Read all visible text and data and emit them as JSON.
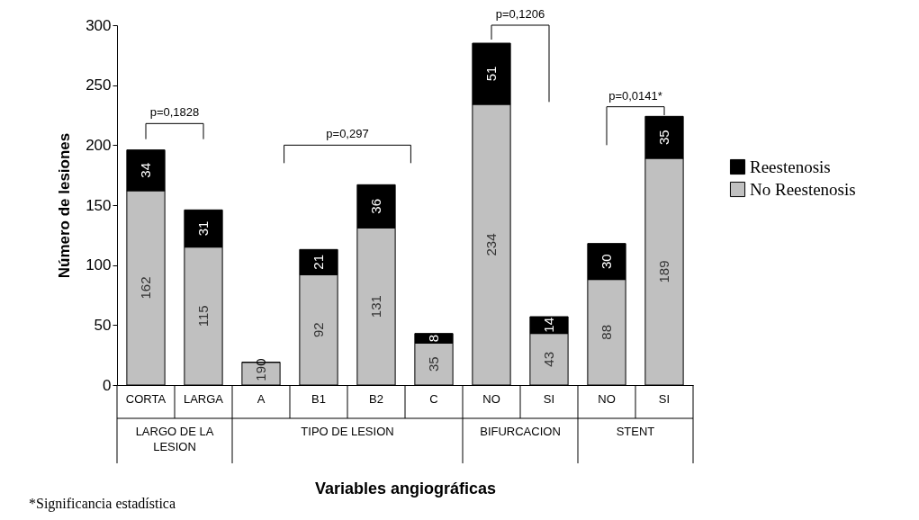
{
  "chart_data": {
    "type": "bar",
    "stacked": true,
    "data_labels": true,
    "legend": "right",
    "xlabel": "Variables angiográficas",
    "ylabel": "Número de lesiones",
    "categories": [
      "CORTA",
      "LARGA",
      "A",
      "B1",
      "B2",
      "C",
      "NO",
      "SI",
      "NO",
      "SI"
    ],
    "series": [
      {
        "name": "No Reestenosis",
        "color": "#c0c0c0",
        "values": [
          162,
          115,
          19,
          92,
          131,
          35,
          234,
          43,
          88,
          189
        ]
      },
      {
        "name": "Reestenosis",
        "color": "#000000",
        "values": [
          34,
          31,
          0,
          21,
          36,
          8,
          51,
          14,
          30,
          35
        ]
      }
    ],
    "ylim": [
      0,
      300
    ],
    "yticks": [
      0,
      50,
      100,
      150,
      200,
      250,
      300
    ],
    "annotations": [
      "p=0,1828",
      "p=0,297",
      "p=0,1206",
      "p=0,0141*",
      "LARGO DE LA LESION",
      "TIPO DE LESION",
      "BIFURCACION",
      "STENT",
      "*Significancia estadística"
    ]
  }
}
